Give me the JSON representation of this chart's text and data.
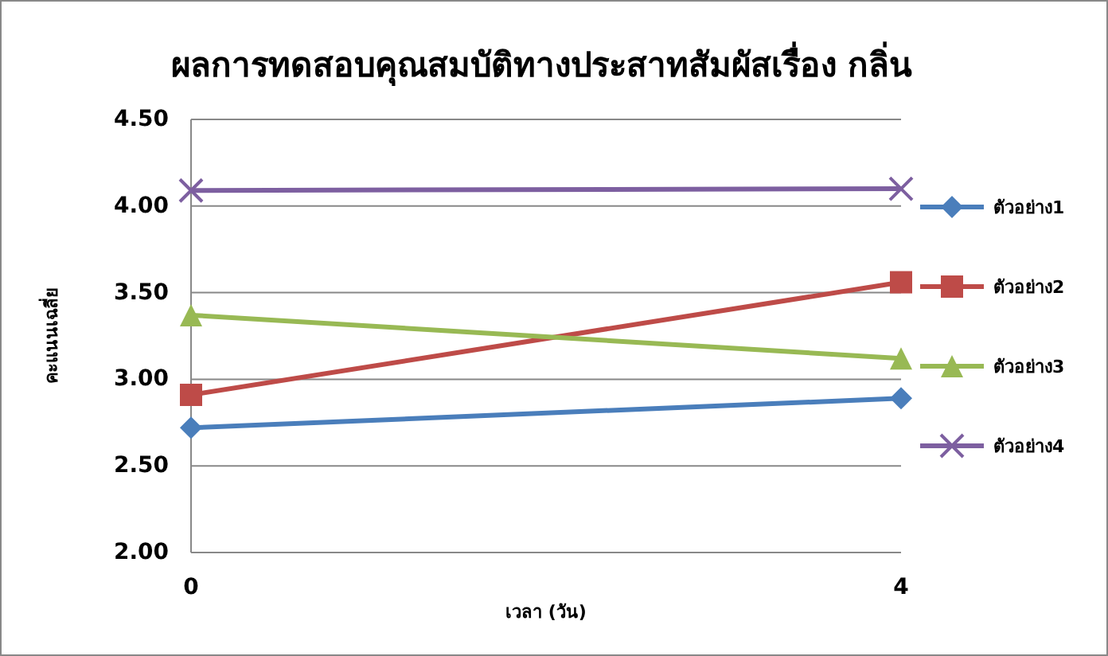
{
  "chart_data": {
    "type": "line",
    "title": "ผลการทดสอบคุณสมบัติทางประสาทสัมผัสเรื่อง กลิ่น",
    "xlabel": "เวลา (วัน)",
    "ylabel": "คะแนนเฉลี่ย",
    "x": [
      0,
      4
    ],
    "xlim": [
      0,
      4
    ],
    "xticks": [
      0,
      4
    ],
    "series": [
      {
        "name": "ตัวอย่าง1",
        "color": "#4a7ebb",
        "marker": "diamond",
        "values": [
          2.72,
          2.89
        ]
      },
      {
        "name": "ตัวอย่าง2",
        "color": "#be4b48",
        "marker": "square",
        "values": [
          2.91,
          3.56
        ]
      },
      {
        "name": "ตัวอย่าง3",
        "color": "#98b954",
        "marker": "triangle",
        "values": [
          3.37,
          3.12
        ]
      },
      {
        "name": "ตัวอย่าง4",
        "color": "#7d5fa0",
        "marker": "cross",
        "values": [
          4.09,
          4.1
        ]
      }
    ],
    "ylim": [
      2,
      4.5
    ],
    "yticks": [
      {
        "value": 2,
        "label": "2.00"
      },
      {
        "value": 2.5,
        "label": "2.50"
      },
      {
        "value": 3,
        "label": "3.00"
      },
      {
        "value": 3.5,
        "label": "3.50"
      },
      {
        "value": 4,
        "label": "4.00"
      },
      {
        "value": 4.5,
        "label": "4.50"
      }
    ],
    "grid": "y",
    "legend": "right",
    "line_style": "solid"
  }
}
